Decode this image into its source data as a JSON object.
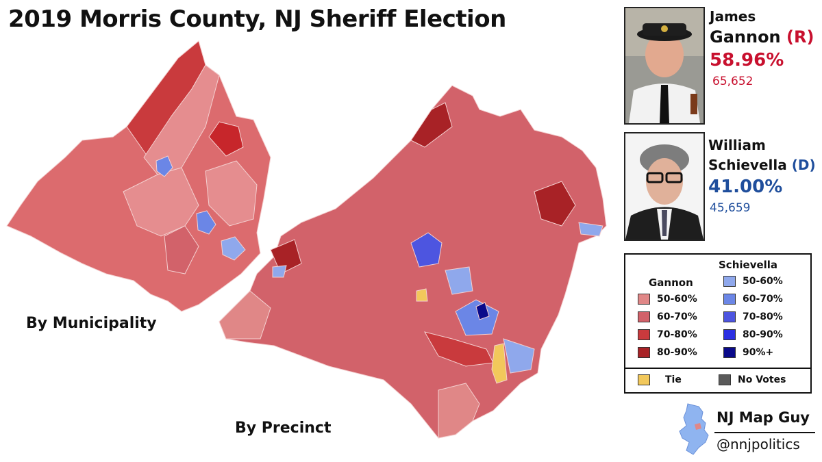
{
  "title": "2019 Morris County, NJ Sheriff Election",
  "maps": {
    "municipality_label": "By Municipality",
    "precinct_label": "By Precinct"
  },
  "candidates": [
    {
      "first": "James",
      "last": "Gannon",
      "party": "(R)",
      "percent": "58.96%",
      "votes": "65,652",
      "color": "#c8102e"
    },
    {
      "first": "William",
      "last": "Schievella",
      "party": "(D)",
      "percent": "41.00%",
      "votes": "45,659",
      "color": "#1f4e9c"
    }
  ],
  "legend": {
    "gannon_header": "Gannon",
    "schievella_header": "Schievella",
    "gannon": [
      {
        "label": "50-60%",
        "color": "#e08787"
      },
      {
        "label": "60-70%",
        "color": "#d2626a"
      },
      {
        "label": "70-80%",
        "color": "#c93a3d"
      },
      {
        "label": "80-90%",
        "color": "#a82226"
      }
    ],
    "schievella": [
      {
        "label": "50-60%",
        "color": "#8fa8ec"
      },
      {
        "label": "60-70%",
        "color": "#6b86e6"
      },
      {
        "label": "70-80%",
        "color": "#4d55e0"
      },
      {
        "label": "80-90%",
        "color": "#2b2fe2"
      },
      {
        "label": "90%+",
        "color": "#0a0a8a"
      }
    ],
    "tie": {
      "label": "Tie",
      "color": "#f2c85b"
    },
    "no_votes": {
      "label": "No Votes",
      "color": "#5a5a5a"
    }
  },
  "branding": {
    "name": "NJ Map Guy",
    "handle": "@nnjpolitics"
  }
}
